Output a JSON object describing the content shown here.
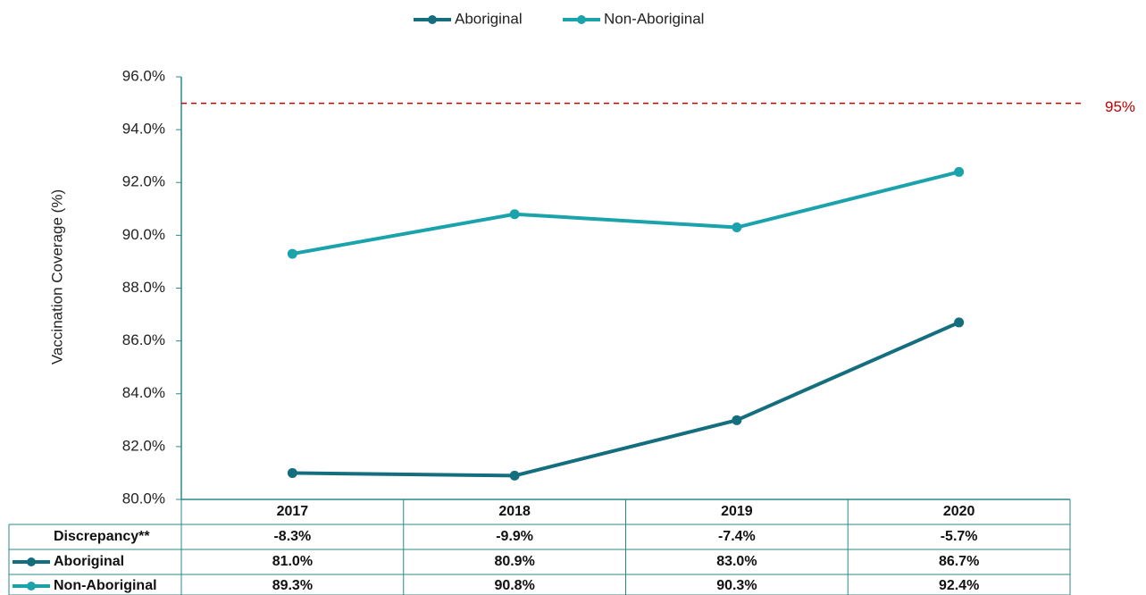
{
  "chart_data": {
    "type": "line",
    "y_axis_label": "Vaccination Coverage (%)",
    "categories": [
      "2017",
      "2018",
      "2019",
      "2020"
    ],
    "ylim": [
      80,
      96
    ],
    "yticks": [
      {
        "value": 80,
        "label": "80.0%"
      },
      {
        "value": 82,
        "label": "82.0%"
      },
      {
        "value": 84,
        "label": "84.0%"
      },
      {
        "value": 86,
        "label": "86.0%"
      },
      {
        "value": 88,
        "label": "88.0%"
      },
      {
        "value": 90,
        "label": "90.0%"
      },
      {
        "value": 92,
        "label": "92.0%"
      },
      {
        "value": 94,
        "label": "94.0%"
      },
      {
        "value": 96,
        "label": "96.0%"
      }
    ],
    "reference_line": {
      "value": 95,
      "label": "95%",
      "color": "#c00000"
    },
    "series": [
      {
        "name": "Aboriginal",
        "color": "#146e7e",
        "values": [
          81.0,
          80.9,
          83.0,
          86.7
        ],
        "value_labels": [
          "81.0%",
          "80.9%",
          "83.0%",
          "86.7%"
        ]
      },
      {
        "name": "Non-Aboriginal",
        "color": "#1ba3ab",
        "values": [
          89.3,
          90.8,
          90.3,
          92.4
        ],
        "value_labels": [
          "89.3%",
          "90.8%",
          "90.3%",
          "92.4%"
        ]
      }
    ],
    "discrepancy": {
      "name": "Discrepancy**",
      "values": [
        -8.3,
        -9.9,
        -7.4,
        -5.7
      ],
      "value_labels": [
        "-8.3%",
        "-9.9%",
        "-7.4%",
        "-5.7%"
      ]
    }
  }
}
